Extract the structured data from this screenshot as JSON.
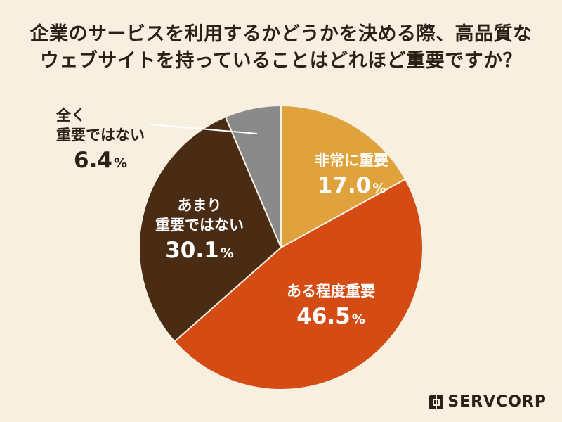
{
  "title": {
    "line1": "企業のサービスを利用するかどうかを決める際、高品質な",
    "line2": "ウェブサイトを持っていることはどれほど重要ですか？"
  },
  "unit": "%",
  "logo": {
    "text": "SERVCORP"
  },
  "colors": {
    "background": "#f7f0e1",
    "title": "#2d2018"
  },
  "chart_data": {
    "type": "pie",
    "start_angle_deg": 0,
    "direction": "clockwise",
    "slices": [
      {
        "label_lines": [
          "非常に重要"
        ],
        "value": 17.0,
        "display": "17.0",
        "color": "#e0a23c",
        "label_color": "#ffffff"
      },
      {
        "label_lines": [
          "ある程度重要"
        ],
        "value": 46.5,
        "display": "46.5",
        "color": "#d44b14",
        "label_color": "#ffffff"
      },
      {
        "label_lines": [
          "あまり",
          "重要ではない"
        ],
        "value": 30.1,
        "display": "30.1",
        "color": "#4a2c14",
        "label_color": "#ffffff"
      },
      {
        "label_lines": [
          "全く",
          "重要ではない"
        ],
        "value": 6.4,
        "display": "6.4",
        "color": "#8a8a8a",
        "label_color": "#2d2018",
        "outside": true
      }
    ]
  }
}
